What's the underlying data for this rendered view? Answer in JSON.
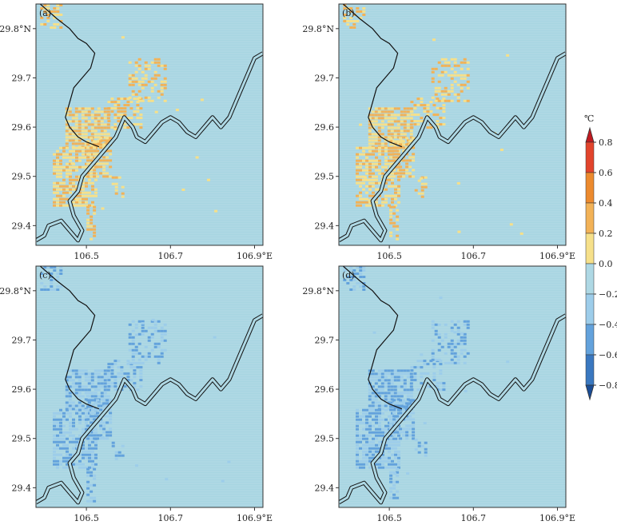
{
  "chart_data": {
    "type": "heatmap",
    "unit": "℃",
    "background_value": -0.1,
    "colorbar": {
      "levels": [
        -0.8,
        -0.6,
        -0.4,
        -0.2,
        0.0,
        0.2,
        0.4,
        0.6,
        0.8
      ],
      "tick_labels": [
        "0.8",
        "0.6",
        "0.4",
        "0.2",
        "0.0",
        "−0.2",
        "−0.4",
        "−0.6",
        "−0.8"
      ],
      "colors": [
        "#1a4d96",
        "#3a78c0",
        "#63a2dc",
        "#9dcdea",
        "#aed8e4",
        "#f6e08a",
        "#f2b257",
        "#ec8a2e",
        "#e2442c",
        "#c01a20"
      ],
      "extend": "both"
    },
    "x_ticks": [
      106.5,
      106.7,
      106.9
    ],
    "x_tick_labels": [
      "106.5",
      "106.7",
      "106.9°E"
    ],
    "y_ticks": [
      29.4,
      29.5,
      29.6,
      29.7,
      29.8
    ],
    "y_tick_labels": [
      "29.4",
      "29.5",
      "29.6",
      "29.7",
      "29.8°N"
    ],
    "xlim": [
      106.38,
      106.92
    ],
    "ylim": [
      29.36,
      29.85
    ],
    "panels": [
      {
        "label": "(a)",
        "level_mid": 0.2,
        "level_low": 0.1,
        "sign": 1
      },
      {
        "label": "(b)",
        "level_mid": 0.3,
        "level_low": 0.15,
        "sign": 1
      },
      {
        "label": "(c)",
        "level_mid": -0.45,
        "level_low": -0.3,
        "sign": -1
      },
      {
        "label": "(d)",
        "level_mid": -0.5,
        "level_low": -0.32,
        "sign": -1
      }
    ],
    "urban_patches": [
      {
        "lon": [
          106.45,
          106.55
        ],
        "lat": [
          29.56,
          29.64
        ],
        "density": 0.8
      },
      {
        "lon": [
          106.42,
          106.52
        ],
        "lat": [
          29.44,
          29.56
        ],
        "density": 0.75
      },
      {
        "lon": [
          106.5,
          106.56
        ],
        "lat": [
          29.5,
          29.58
        ],
        "density": 0.7
      },
      {
        "lon": [
          106.5,
          106.52
        ],
        "lat": [
          29.37,
          29.44
        ],
        "density": 0.6
      },
      {
        "lon": [
          106.55,
          106.63
        ],
        "lat": [
          29.6,
          29.66
        ],
        "density": 0.5
      },
      {
        "lon": [
          106.6,
          106.69
        ],
        "lat": [
          29.65,
          29.74
        ],
        "density": 0.45
      },
      {
        "lon": [
          106.39,
          106.44
        ],
        "lat": [
          29.8,
          29.85
        ],
        "density": 0.55
      },
      {
        "lon": [
          106.56,
          106.59
        ],
        "lat": [
          29.46,
          29.5
        ],
        "density": 0.35
      }
    ]
  }
}
